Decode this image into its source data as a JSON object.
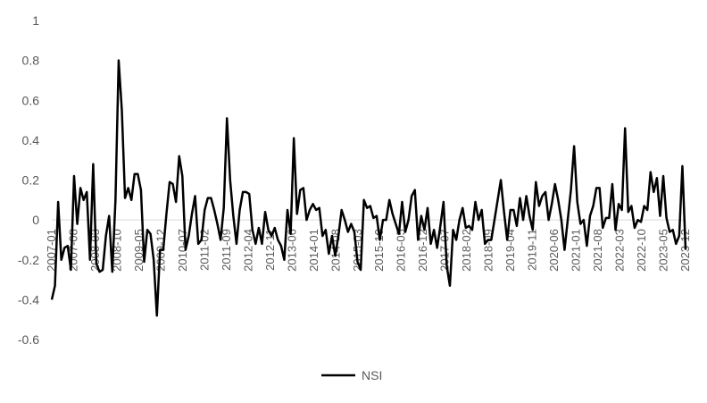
{
  "chart_data": {
    "type": "line",
    "title": "",
    "xlabel": "",
    "ylabel": "",
    "ylim": [
      -0.6,
      1
    ],
    "yticks": [
      "1",
      "0.8",
      "0.6",
      "0.4",
      "0.2",
      "0",
      "-0.2",
      "-0.4",
      "-0.6"
    ],
    "ytick_values": [
      1,
      0.8,
      0.6,
      0.4,
      0.2,
      0,
      -0.2,
      -0.4,
      -0.6
    ],
    "grid": false,
    "legend_position": "bottom",
    "x_start": "2007-01",
    "x_end": "2023-12",
    "xticks": [
      "2007-01",
      "2007-08",
      "2008-03",
      "2008-10",
      "2009-05",
      "2009-12",
      "2010-07",
      "2011-02",
      "2011-09",
      "2012-04",
      "2012-11",
      "2013-06",
      "2014-01",
      "2014-08",
      "2015-03",
      "2015-10",
      "2016-05",
      "2016-12",
      "2017-07",
      "2018-02",
      "2018-09",
      "2019-04",
      "2019-11",
      "2020-06",
      "2021-01",
      "2021-08",
      "2022-03",
      "2022-10",
      "2023-05",
      "2023-12"
    ],
    "series": [
      {
        "name": "NSI",
        "color": "#000000",
        "values": [
          -0.4,
          -0.33,
          0.09,
          -0.2,
          -0.14,
          -0.13,
          -0.25,
          0.22,
          -0.02,
          0.16,
          0.1,
          0.14,
          -0.2,
          0.28,
          -0.22,
          -0.26,
          -0.25,
          -0.08,
          0.02,
          -0.26,
          0.1,
          0.8,
          0.55,
          0.11,
          0.16,
          0.1,
          0.23,
          0.23,
          0.15,
          -0.21,
          -0.05,
          -0.07,
          -0.2,
          -0.48,
          -0.15,
          -0.15,
          0.03,
          0.19,
          0.18,
          0.09,
          0.32,
          0.22,
          -0.15,
          -0.08,
          0.03,
          0.12,
          -0.12,
          -0.1,
          0.05,
          0.11,
          0.11,
          0.05,
          -0.02,
          -0.1,
          0.06,
          0.51,
          0.2,
          0.02,
          -0.12,
          0.05,
          0.14,
          0.14,
          0.13,
          -0.05,
          -0.12,
          -0.04,
          -0.12,
          0.04,
          -0.05,
          -0.08,
          -0.04,
          -0.1,
          -0.13,
          -0.2,
          0.05,
          -0.07,
          0.41,
          0.03,
          0.15,
          0.16,
          0.0,
          0.05,
          0.08,
          0.05,
          0.06,
          -0.08,
          -0.05,
          -0.17,
          -0.08,
          -0.18,
          -0.08,
          0.05,
          0.0,
          -0.06,
          -0.02,
          -0.06,
          -0.21,
          -0.25,
          0.1,
          0.06,
          0.07,
          0.01,
          0.02,
          -0.1,
          0.0,
          0.0,
          0.1,
          0.03,
          -0.02,
          -0.07,
          0.09,
          -0.06,
          0.0,
          0.12,
          0.15,
          -0.1,
          0.02,
          -0.05,
          0.06,
          -0.12,
          -0.05,
          -0.14,
          -0.03,
          0.09,
          -0.23,
          -0.33,
          -0.05,
          -0.1,
          0.0,
          0.06,
          -0.04,
          -0.03,
          -0.05,
          0.09,
          0.0,
          0.05,
          -0.12,
          -0.1,
          -0.1,
          0.0,
          0.1,
          0.2,
          0.04,
          -0.1,
          0.05,
          0.05,
          -0.03,
          0.11,
          0.0,
          0.12,
          0.02,
          -0.05,
          0.19,
          0.07,
          0.12,
          0.14,
          0.0,
          0.08,
          0.18,
          0.1,
          0.0,
          -0.15,
          0.0,
          0.15,
          0.37,
          0.09,
          -0.02,
          0.0,
          -0.13,
          0.02,
          0.07,
          0.16,
          0.16,
          -0.04,
          0.01,
          0.01,
          0.18,
          -0.05,
          0.08,
          0.05,
          0.46,
          0.04,
          0.07,
          -0.04,
          0.0,
          -0.01,
          0.07,
          0.05,
          0.24,
          0.14,
          0.21,
          0.02,
          0.22,
          0.01,
          -0.06,
          -0.05,
          -0.12,
          -0.08,
          0.27,
          -0.15
        ]
      }
    ]
  }
}
